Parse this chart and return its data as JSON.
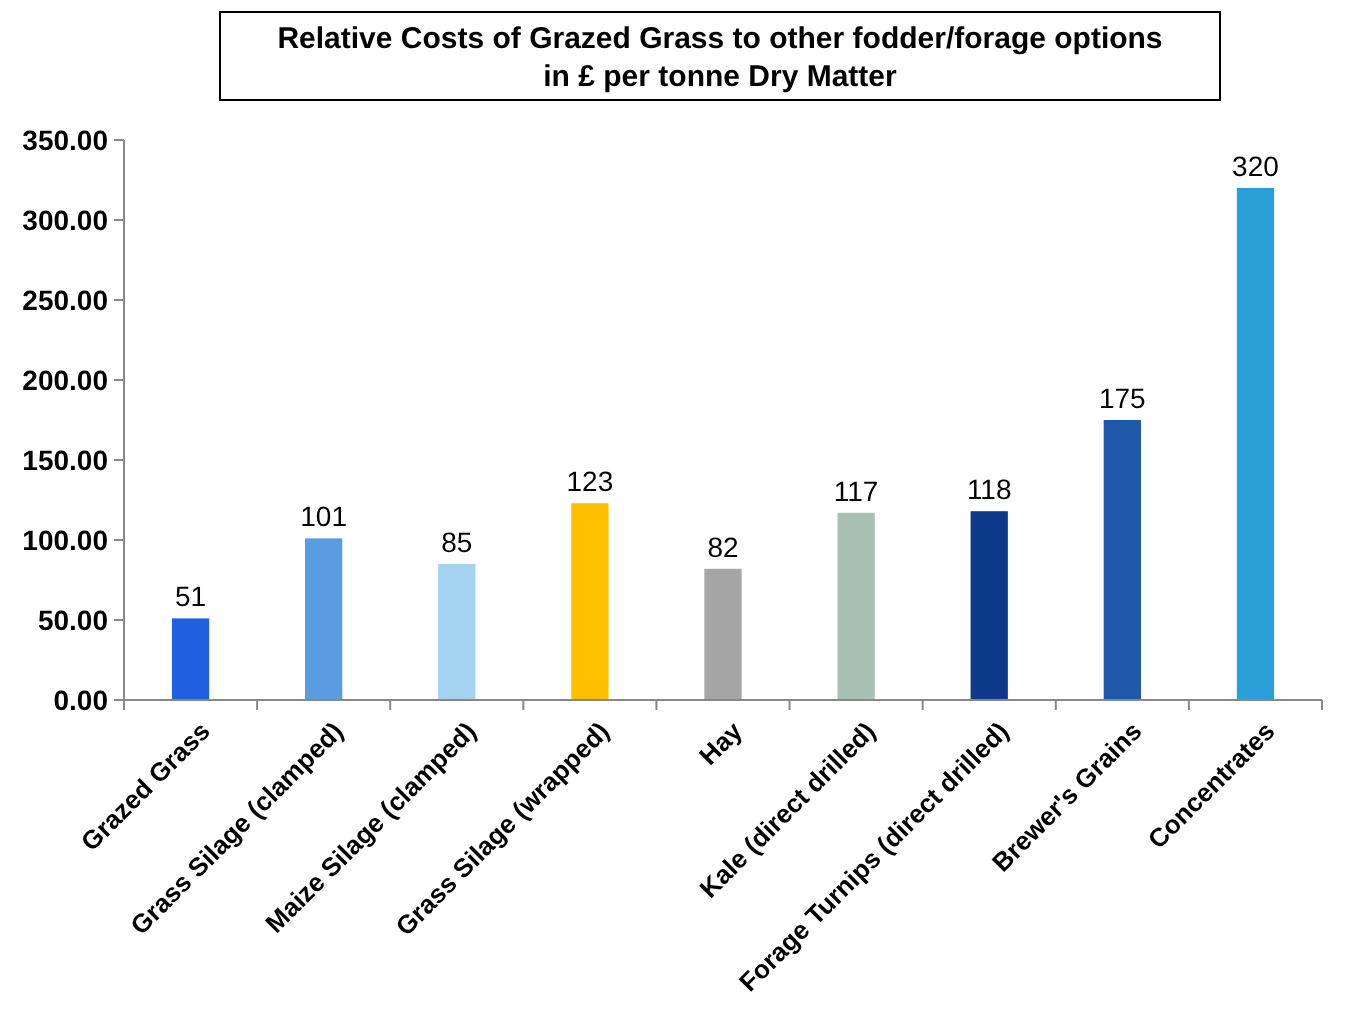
{
  "chart_data": {
    "type": "bar",
    "title": "Relative Costs of Grazed Grass to other fodder/forage options\nin £ per tonne Dry Matter",
    "categories": [
      "Grazed Grass",
      "Grass Silage (clamped)",
      "Maize Silage (clamped)",
      "Grass Silage (wrapped)",
      "Hay",
      "Kale (direct drilled)",
      "Forage Turnips (direct drilled)",
      "Brewer's Grains",
      "Concentrates"
    ],
    "values": [
      51,
      101,
      85,
      123,
      82,
      117,
      118,
      175,
      320
    ],
    "colors": [
      "#1f5fe0",
      "#5b9be0",
      "#a3d3f0",
      "#ffc000",
      "#a5a5a5",
      "#a9c0b5",
      "#0e3a8a",
      "#1f58a8",
      "#2a9ed6"
    ],
    "ylim": [
      0,
      350
    ],
    "yticks": [
      {
        "value": 0,
        "label": "0.00"
      },
      {
        "value": 50,
        "label": "50.00"
      },
      {
        "value": 100,
        "label": "100.00"
      },
      {
        "value": 150,
        "label": "150.00"
      },
      {
        "value": 200,
        "label": "200.00"
      },
      {
        "value": 250,
        "label": "250.00"
      },
      {
        "value": 300,
        "label": "300.00"
      },
      {
        "value": 350,
        "label": "350.00"
      }
    ],
    "data_labels": true,
    "grid": false
  }
}
